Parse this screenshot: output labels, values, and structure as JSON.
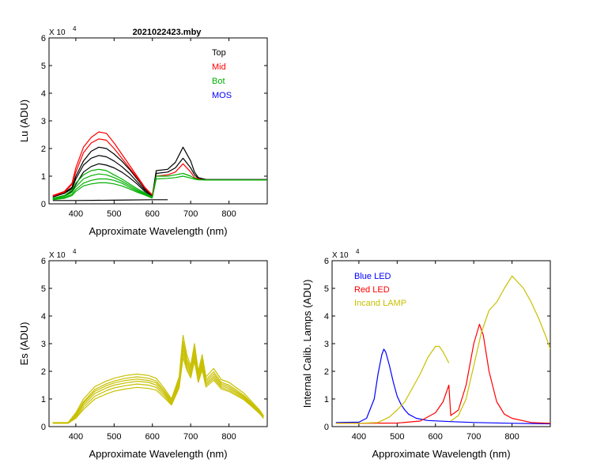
{
  "figure_title": "2021022423.mby",
  "chart_data": [
    {
      "id": "lu",
      "type": "line",
      "xlabel": "Approximate Wavelength (nm)",
      "ylabel": "Lu (ADU)",
      "exponent_label": "X 10",
      "exponent_power": "4",
      "xlim": [
        330,
        900
      ],
      "ylim": [
        0,
        6
      ],
      "xticks": [
        "400",
        "500",
        "600",
        "700",
        "800"
      ],
      "xtick_values": [
        400,
        500,
        600,
        700,
        800
      ],
      "yticks": [
        "0",
        "1",
        "2",
        "3",
        "4",
        "5",
        "6"
      ],
      "legend": [
        {
          "name": "Top",
          "color": "#000000"
        },
        {
          "name": "Mid",
          "color": "#ff0000"
        },
        {
          "name": "Bot",
          "color": "#00b000"
        },
        {
          "name": "MOS",
          "color": "#0000ff"
        }
      ],
      "series": [
        {
          "name": "Top 1",
          "group": "Top",
          "color": "#000000",
          "x": [
            340,
            370,
            390,
            400,
            420,
            440,
            460,
            480,
            500,
            520,
            540,
            560,
            580,
            600,
            610,
            640,
            660,
            680,
            700,
            710,
            720,
            740,
            780,
            820,
            860,
            900
          ],
          "y": [
            0.25,
            0.4,
            0.6,
            1.0,
            1.55,
            1.9,
            2.05,
            2.0,
            1.8,
            1.55,
            1.25,
            0.9,
            0.55,
            0.3,
            1.2,
            1.25,
            1.5,
            2.05,
            1.55,
            1.15,
            0.95,
            0.88,
            0.88,
            0.88,
            0.88,
            0.88
          ]
        },
        {
          "name": "Top 2",
          "group": "Top",
          "color": "#000000",
          "x": [
            340,
            370,
            390,
            400,
            420,
            440,
            460,
            480,
            500,
            520,
            540,
            560,
            580,
            600,
            610,
            640,
            660,
            680,
            700,
            710,
            720,
            740,
            780,
            820,
            860,
            900
          ],
          "y": [
            0.25,
            0.38,
            0.55,
            0.9,
            1.4,
            1.65,
            1.75,
            1.7,
            1.55,
            1.35,
            1.1,
            0.8,
            0.5,
            0.28,
            1.1,
            1.15,
            1.3,
            1.65,
            1.3,
            1.05,
            0.92,
            0.87,
            0.87,
            0.87,
            0.87,
            0.87
          ]
        },
        {
          "name": "Top 3",
          "group": "Top",
          "color": "#000000",
          "x": [
            340,
            370,
            390,
            400,
            420,
            440,
            460,
            480,
            500,
            520,
            540,
            560,
            580,
            600
          ],
          "y": [
            0.2,
            0.3,
            0.45,
            0.7,
            1.15,
            1.35,
            1.45,
            1.4,
            1.3,
            1.15,
            0.95,
            0.72,
            0.45,
            0.25
          ]
        },
        {
          "name": "Mid 1",
          "group": "Mid",
          "color": "#ff0000",
          "x": [
            340,
            370,
            390,
            400,
            420,
            440,
            460,
            480,
            500,
            520,
            540,
            560,
            580,
            600,
            610,
            640,
            660,
            680,
            700,
            710,
            720,
            740,
            780,
            820,
            860,
            900
          ],
          "y": [
            0.3,
            0.45,
            0.75,
            1.3,
            2.05,
            2.4,
            2.6,
            2.55,
            2.2,
            1.8,
            1.4,
            1.0,
            0.6,
            0.32,
            1.0,
            1.05,
            1.15,
            1.45,
            1.15,
            0.95,
            0.9,
            0.86,
            0.86,
            0.86,
            0.86,
            0.86
          ]
        },
        {
          "name": "Mid 2",
          "group": "Mid",
          "color": "#ff0000",
          "x": [
            340,
            370,
            390,
            400,
            420,
            440,
            460,
            480,
            500,
            520,
            540,
            560,
            580,
            600
          ],
          "y": [
            0.28,
            0.42,
            0.7,
            1.15,
            1.85,
            2.2,
            2.35,
            2.3,
            2.0,
            1.65,
            1.3,
            0.95,
            0.58,
            0.3
          ]
        },
        {
          "name": "Bot 1",
          "group": "Bot",
          "color": "#00b000",
          "x": [
            340,
            370,
            390,
            400,
            420,
            440,
            460,
            480,
            500,
            520,
            540,
            560,
            580,
            600,
            610,
            640,
            660,
            680,
            700,
            710,
            720,
            740,
            780,
            820,
            860,
            900
          ],
          "y": [
            0.2,
            0.3,
            0.5,
            0.75,
            1.05,
            1.2,
            1.25,
            1.2,
            1.05,
            0.9,
            0.72,
            0.55,
            0.4,
            0.25,
            1.0,
            1.0,
            1.05,
            1.1,
            1.0,
            0.92,
            0.88,
            0.86,
            0.86,
            0.86,
            0.86,
            0.86
          ]
        },
        {
          "name": "Bot 2",
          "group": "Bot",
          "color": "#00b000",
          "x": [
            340,
            370,
            390,
            400,
            420,
            440,
            460,
            480,
            500,
            520,
            540,
            560,
            580,
            600,
            610,
            640,
            660,
            680,
            700,
            710,
            720,
            740,
            780,
            820,
            860,
            900
          ],
          "y": [
            0.18,
            0.26,
            0.42,
            0.62,
            0.9,
            1.02,
            1.08,
            1.05,
            0.95,
            0.82,
            0.66,
            0.5,
            0.37,
            0.23,
            0.9,
            0.92,
            0.95,
            1.0,
            0.93,
            0.89,
            0.87,
            0.86,
            0.86,
            0.86,
            0.86,
            0.86
          ]
        },
        {
          "name": "Bot 3",
          "group": "Bot",
          "color": "#00b000",
          "x": [
            340,
            370,
            390,
            400,
            420,
            440,
            460,
            480,
            500,
            520,
            540,
            560,
            580,
            600
          ],
          "y": [
            0.16,
            0.22,
            0.35,
            0.52,
            0.75,
            0.85,
            0.9,
            0.9,
            0.85,
            0.75,
            0.6,
            0.46,
            0.34,
            0.22
          ]
        },
        {
          "name": "Bot 4",
          "group": "Bot",
          "color": "#00b000",
          "x": [
            340,
            370,
            390,
            400,
            420,
            440,
            460,
            480,
            500,
            520,
            540,
            560,
            580,
            600
          ],
          "y": [
            0.15,
            0.2,
            0.3,
            0.45,
            0.65,
            0.72,
            0.76,
            0.76,
            0.72,
            0.65,
            0.54,
            0.42,
            0.32,
            0.2
          ]
        },
        {
          "name": "Baseline",
          "group": "Top",
          "color": "#000000",
          "x": [
            340,
            400,
            500,
            600,
            640
          ],
          "y": [
            0.12,
            0.12,
            0.13,
            0.15,
            0.15
          ]
        }
      ]
    },
    {
      "id": "es",
      "type": "line",
      "xlabel": "Approximate Wavelength (nm)",
      "ylabel": "Es  (ADU)",
      "exponent_label": "X 10",
      "exponent_power": "4",
      "xlim": [
        330,
        900
      ],
      "ylim": [
        0,
        6
      ],
      "xticks": [
        "400",
        "500",
        "600",
        "700",
        "800"
      ],
      "xtick_values": [
        400,
        500,
        600,
        700,
        800
      ],
      "yticks": [
        "0",
        "1",
        "2",
        "3",
        "4",
        "5",
        "6"
      ],
      "series_color": "#c8c000",
      "x": [
        340,
        380,
        400,
        420,
        450,
        480,
        500,
        530,
        560,
        590,
        610,
        630,
        650,
        670,
        680,
        690,
        700,
        710,
        720,
        730,
        740,
        760,
        780,
        800,
        820,
        840,
        860,
        880,
        890
      ],
      "series": [
        {
          "name": "Es 1",
          "y": [
            0.15,
            0.15,
            0.5,
            1.0,
            1.45,
            1.65,
            1.75,
            1.85,
            1.9,
            1.85,
            1.75,
            1.4,
            1.0,
            1.8,
            3.3,
            2.6,
            2.2,
            3.0,
            2.0,
            2.6,
            1.8,
            2.1,
            1.7,
            1.6,
            1.4,
            1.2,
            0.9,
            0.6,
            0.4
          ]
        },
        {
          "name": "Es 2",
          "y": [
            0.14,
            0.14,
            0.45,
            0.9,
            1.35,
            1.55,
            1.65,
            1.75,
            1.8,
            1.75,
            1.65,
            1.32,
            0.95,
            1.7,
            3.1,
            2.45,
            2.1,
            2.85,
            1.9,
            2.45,
            1.7,
            1.98,
            1.6,
            1.5,
            1.32,
            1.12,
            0.85,
            0.56,
            0.37
          ]
        },
        {
          "name": "Es 3",
          "y": [
            0.13,
            0.13,
            0.42,
            0.85,
            1.28,
            1.48,
            1.58,
            1.67,
            1.72,
            1.67,
            1.58,
            1.26,
            0.9,
            1.62,
            2.95,
            2.35,
            2.0,
            2.72,
            1.82,
            2.35,
            1.63,
            1.9,
            1.54,
            1.44,
            1.27,
            1.08,
            0.82,
            0.54,
            0.35
          ]
        },
        {
          "name": "Es 4",
          "y": [
            0.13,
            0.13,
            0.38,
            0.78,
            1.2,
            1.4,
            1.5,
            1.58,
            1.64,
            1.6,
            1.5,
            1.2,
            0.86,
            1.55,
            2.8,
            2.25,
            1.92,
            2.6,
            1.75,
            2.25,
            1.56,
            1.82,
            1.48,
            1.38,
            1.22,
            1.04,
            0.78,
            0.51,
            0.33
          ]
        },
        {
          "name": "Es 5",
          "y": [
            0.12,
            0.12,
            0.33,
            0.7,
            1.1,
            1.3,
            1.4,
            1.48,
            1.54,
            1.5,
            1.42,
            1.13,
            0.82,
            1.48,
            2.65,
            2.14,
            1.84,
            2.48,
            1.68,
            2.15,
            1.5,
            1.75,
            1.42,
            1.32,
            1.17,
            1.0,
            0.75,
            0.49,
            0.31
          ]
        },
        {
          "name": "Es 6",
          "y": [
            0.12,
            0.12,
            0.3,
            0.62,
            1.0,
            1.18,
            1.28,
            1.36,
            1.42,
            1.38,
            1.32,
            1.06,
            0.78,
            1.4,
            2.5,
            2.04,
            1.76,
            2.36,
            1.6,
            2.05,
            1.43,
            1.68,
            1.36,
            1.27,
            1.12,
            0.96,
            0.72,
            0.47,
            0.3
          ]
        }
      ]
    },
    {
      "id": "lamps",
      "type": "line",
      "xlabel": "Approximate Wavelength (nm)",
      "ylabel": "Internal Calib. Lamps  (ADU)",
      "exponent_label": "X 10",
      "exponent_power": "4",
      "xlim": [
        330,
        900
      ],
      "ylim": [
        0,
        6
      ],
      "xticks": [
        "400",
        "500",
        "600",
        "700",
        "800"
      ],
      "xtick_values": [
        400,
        500,
        600,
        700,
        800
      ],
      "yticks": [
        "0",
        "1",
        "2",
        "3",
        "4",
        "5",
        "6"
      ],
      "legend": [
        {
          "name": "Blue LED",
          "color": "#0000ff"
        },
        {
          "name": "Red LED",
          "color": "#ff0000"
        },
        {
          "name": "Incand LAMP",
          "color": "#c8c000"
        }
      ],
      "series": [
        {
          "name": "Blue LED",
          "color": "#0000ff",
          "x": [
            340,
            400,
            420,
            440,
            450,
            460,
            465,
            470,
            480,
            490,
            500,
            510,
            520,
            530,
            550,
            580,
            640,
            700,
            800,
            900
          ],
          "y": [
            0.15,
            0.16,
            0.3,
            1.0,
            1.9,
            2.6,
            2.8,
            2.7,
            2.2,
            1.6,
            1.1,
            0.8,
            0.6,
            0.45,
            0.3,
            0.22,
            0.18,
            0.15,
            0.12,
            0.1
          ]
        },
        {
          "name": "Red LED",
          "color": "#ff0000",
          "x": [
            340,
            400,
            500,
            560,
            600,
            620,
            635,
            640,
            660,
            680,
            700,
            715,
            725,
            740,
            760,
            780,
            800,
            850,
            900
          ],
          "y": [
            0.12,
            0.12,
            0.13,
            0.2,
            0.5,
            0.9,
            1.5,
            0.4,
            0.6,
            1.5,
            3.0,
            3.7,
            3.3,
            2.0,
            0.9,
            0.45,
            0.3,
            0.15,
            0.12
          ]
        },
        {
          "name": "Incand LAMP",
          "color": "#c8c000",
          "x": [
            340,
            400,
            450,
            480,
            500,
            520,
            540,
            560,
            580,
            600,
            610,
            620,
            635
          ],
          "y": [
            0.12,
            0.12,
            0.15,
            0.35,
            0.6,
            0.9,
            1.4,
            1.9,
            2.5,
            2.9,
            2.9,
            2.7,
            2.3
          ]
        },
        {
          "name": "Incand LAMP 2",
          "color": "#c8c000",
          "x": [
            640,
            660,
            680,
            700,
            720,
            740,
            760,
            780,
            800,
            810,
            830,
            850,
            870,
            890,
            900
          ],
          "y": [
            0.2,
            0.4,
            1.0,
            2.2,
            3.4,
            4.2,
            4.5,
            5.0,
            5.45,
            5.3,
            5.0,
            4.5,
            3.9,
            3.2,
            2.8
          ]
        }
      ]
    }
  ]
}
